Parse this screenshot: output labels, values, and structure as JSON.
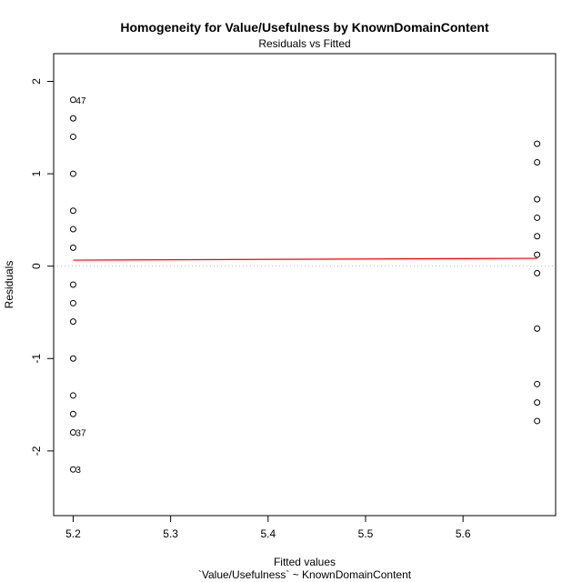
{
  "chart_data": {
    "type": "scatter",
    "title": "Homogeneity for Value/Usefulness by KnownDomainContent",
    "subtitle": "Residuals vs Fitted",
    "xlabel": "Fitted values",
    "xlabel_sub": "`Value/Usefulness` ~ KnownDomainContent",
    "ylabel": "Residuals",
    "xlim": [
      5.18,
      5.695
    ],
    "ylim": [
      -2.7,
      2.3
    ],
    "x_ticks": [
      5.2,
      5.3,
      5.4,
      5.5,
      5.6
    ],
    "x_tick_labels": [
      "5.2",
      "5.3",
      "5.4",
      "5.5",
      "5.6"
    ],
    "y_ticks": [
      -2,
      -1,
      0,
      1,
      2
    ],
    "y_tick_labels": [
      "-2",
      "-1",
      "0",
      "1",
      "2"
    ],
    "grid": false,
    "zero_line": true,
    "colors": {
      "points": "#000000",
      "smooth_line": "#ff0000",
      "zero_line": "#bbbbbb"
    },
    "points": [
      {
        "x": 5.2,
        "y": 1.8
      },
      {
        "x": 5.2,
        "y": 1.6
      },
      {
        "x": 5.2,
        "y": 1.4
      },
      {
        "x": 5.2,
        "y": 1.0
      },
      {
        "x": 5.2,
        "y": 0.6
      },
      {
        "x": 5.2,
        "y": 0.4
      },
      {
        "x": 5.2,
        "y": 0.2
      },
      {
        "x": 5.2,
        "y": -0.2
      },
      {
        "x": 5.2,
        "y": -0.4
      },
      {
        "x": 5.2,
        "y": -0.6
      },
      {
        "x": 5.2,
        "y": -1.0
      },
      {
        "x": 5.2,
        "y": -1.4
      },
      {
        "x": 5.2,
        "y": -1.6
      },
      {
        "x": 5.2,
        "y": -1.8
      },
      {
        "x": 5.2,
        "y": -2.2
      },
      {
        "x": 5.676,
        "y": 1.324
      },
      {
        "x": 5.676,
        "y": 1.124
      },
      {
        "x": 5.676,
        "y": 0.724
      },
      {
        "x": 5.676,
        "y": 0.524
      },
      {
        "x": 5.676,
        "y": 0.324
      },
      {
        "x": 5.676,
        "y": 0.124
      },
      {
        "x": 5.676,
        "y": -0.076
      },
      {
        "x": 5.676,
        "y": -0.676
      },
      {
        "x": 5.676,
        "y": -1.276
      },
      {
        "x": 5.676,
        "y": -1.476
      },
      {
        "x": 5.676,
        "y": -1.676
      }
    ],
    "labeled_points": [
      {
        "label": "47",
        "x": 5.2,
        "y": 1.8
      },
      {
        "label": "37",
        "x": 5.2,
        "y": -1.8
      },
      {
        "label": "3",
        "x": 5.2,
        "y": -2.2
      }
    ],
    "smooth_line": [
      {
        "x": 5.2,
        "y": 0.065
      },
      {
        "x": 5.676,
        "y": 0.085
      }
    ]
  }
}
